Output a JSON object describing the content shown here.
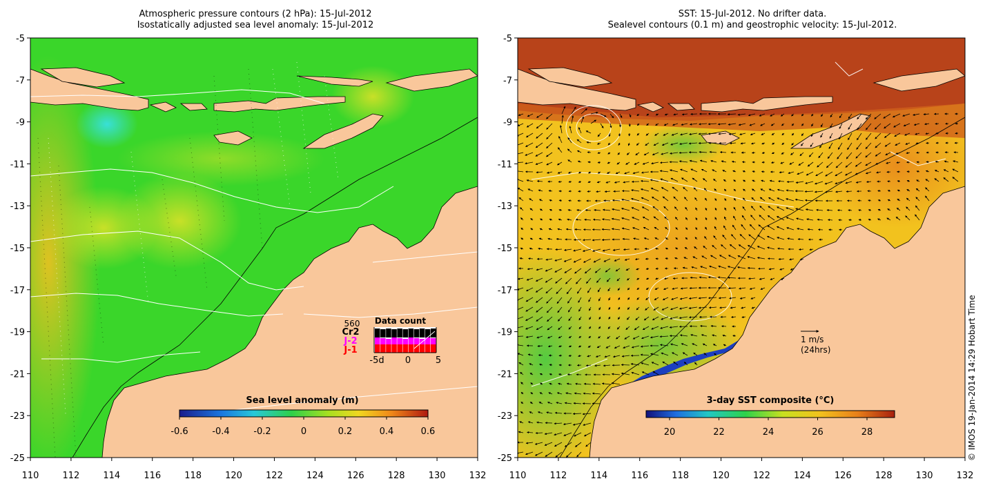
{
  "left_panel": {
    "title_line1": "Atmospheric pressure contours (2 hPa): 15-Jul-2012",
    "title_line2": "Isostatically adjusted sea level anomaly: 15-Jul-2012",
    "x_ticks": [
      "110",
      "112",
      "114",
      "116",
      "118",
      "120",
      "122",
      "124",
      "126",
      "128",
      "130",
      "132"
    ],
    "y_ticks": [
      "-5",
      "-7",
      "-9",
      "-11",
      "-13",
      "-15",
      "-17",
      "-19",
      "-21",
      "-23",
      "-25"
    ],
    "colorbar_title": "Sea level anomaly (m)",
    "colorbar_ticks": [
      "-0.6",
      "-0.4",
      "-0.2",
      "0",
      "0.2",
      "0.4",
      "0.6"
    ],
    "data_count": {
      "title": "Data count",
      "max_label": "560",
      "satellites": [
        {
          "name": "Cr2",
          "color": "#000000"
        },
        {
          "name": "J-2",
          "color": "#ff00ff"
        },
        {
          "name": "J-1",
          "color": "#ff0000"
        }
      ],
      "x_labels": [
        "-5d",
        "0",
        "5"
      ]
    }
  },
  "right_panel": {
    "title_line1": "SST: 15-Jul-2012. No drifter data.",
    "title_line2": "Sealevel contours (0.1 m) and geostrophic velocity: 15-Jul-2012.",
    "x_ticks": [
      "110",
      "112",
      "114",
      "116",
      "118",
      "120",
      "122",
      "124",
      "126",
      "128",
      "130",
      "132"
    ],
    "y_ticks": [
      "-5",
      "-7",
      "-9",
      "-11",
      "-13",
      "-15",
      "-17",
      "-19",
      "-21",
      "-23",
      "-25"
    ],
    "colorbar_title": "3-day SST composite (°C)",
    "colorbar_ticks": [
      "20",
      "22",
      "24",
      "26",
      "28"
    ],
    "velocity_scale": {
      "label": "1 m/s",
      "sublabel": "(24hrs)"
    }
  },
  "credit": "© IMOS 19-Jan-2014 14:29 Hobart Time",
  "colors": {
    "land": "#f9c79b",
    "sla_ocean": "#3ad62a",
    "sst_ocean": "#f2c21e",
    "sst_warm": "#b8431a"
  }
}
